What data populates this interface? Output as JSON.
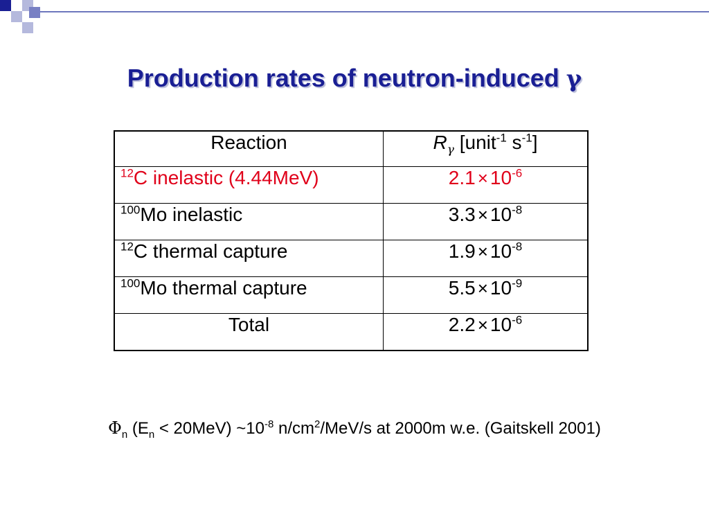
{
  "slide": {
    "title": "Production rates of neutron-induced",
    "title_symbol": "γ",
    "colors": {
      "title": "#1a1f94",
      "accent_red": "#e0001a",
      "deco": "#6d76bd"
    }
  },
  "table": {
    "header": {
      "reaction": "Reaction",
      "rate_symbol": "R",
      "rate_sub": "γ",
      "rate_unit_a": "[unit",
      "rate_unit_a_exp": "-1",
      "rate_unit_b": " s",
      "rate_unit_b_exp": "-1",
      "rate_unit_c": "]"
    },
    "rows": [
      {
        "iso": "12",
        "reaction": "C inelastic (4.44MeV)",
        "mant": "2.1",
        "times": "×",
        "base": "10",
        "exp": "-6"
      },
      {
        "iso": "100",
        "reaction": "Mo inelastic",
        "mant": "3.3",
        "times": "×",
        "base": "10",
        "exp": "-8"
      },
      {
        "iso": "12",
        "reaction": "C thermal capture",
        "mant": "1.9",
        "times": "×",
        "base": "10",
        "exp": "-8"
      },
      {
        "iso": "100",
        "reaction": "Mo thermal capture",
        "mant": "5.5",
        "times": "×",
        "base": "10",
        "exp": "-9"
      }
    ],
    "total": {
      "label": "Total",
      "mant": "2.2",
      "times": "×",
      "base": "10",
      "exp": "-6"
    }
  },
  "footnote": {
    "phi": "Φ",
    "phi_sub": "n",
    "t1": " (E",
    "e_sub": "n",
    "t2": " < 20MeV) ~10",
    "exp1": "-8",
    "t3": " n/cm",
    "exp2": "2",
    "t4": "/MeV/s at 2000m w.e. (Gaitskell 2001)"
  }
}
